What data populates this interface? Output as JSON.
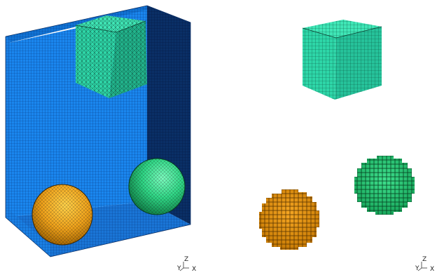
{
  "viewports": [
    {
      "name": "fine-mesh",
      "objects": [
        "container-box",
        "cube",
        "sphere-orange",
        "sphere-green"
      ],
      "axis_triad": {
        "labels": {
          "x": "X",
          "y": "Y",
          "z": "Z"
        }
      }
    },
    {
      "name": "voxelized",
      "objects": [
        "cube",
        "sphere-orange",
        "sphere-green"
      ],
      "axis_triad": {
        "labels": {
          "x": "X",
          "y": "Y",
          "z": "Z"
        }
      }
    }
  ],
  "colors": {
    "container_front": "#1a86ee",
    "container_side": "#0a2f66",
    "container_floor": "#1a75d6",
    "container_grid": "#0a3f8a",
    "cube_face": "#2ed6a8",
    "cube_top": "#3fe6b6",
    "cube_side": "#22b48c",
    "orange_light": "#ffc438",
    "orange_dark": "#a86800",
    "green_light": "#55f0a0",
    "green_dark": "#0f8a4c",
    "mesh_line": "#1a1a1a"
  }
}
